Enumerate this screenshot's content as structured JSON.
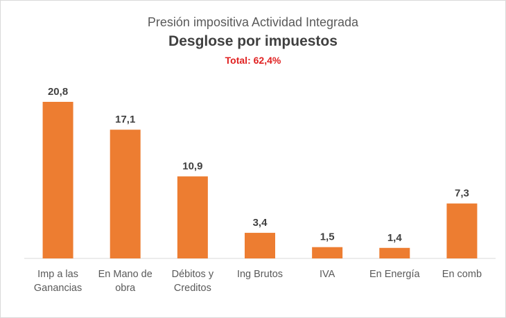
{
  "chart_data": {
    "type": "bar",
    "title": "Presión impositiva Actividad Integrada",
    "subtitle": "Desglose por impuestos",
    "total_label": "Total: 62,4%",
    "categories": [
      [
        "Imp a las",
        "Ganancias"
      ],
      [
        "En Mano de",
        "obra"
      ],
      [
        "Débitos y",
        "Creditos"
      ],
      [
        "Ing Brutos"
      ],
      [
        "IVA"
      ],
      [
        "En Energía"
      ],
      [
        "En comb"
      ]
    ],
    "values": [
      20.8,
      17.1,
      10.9,
      3.4,
      1.5,
      1.4,
      7.3
    ],
    "value_labels": [
      "20,8",
      "17,1",
      "10,9",
      "3,4",
      "1,5",
      "1,4",
      "7,3"
    ],
    "bar_color": "#ED7D31",
    "grid": false,
    "legend": "none"
  }
}
